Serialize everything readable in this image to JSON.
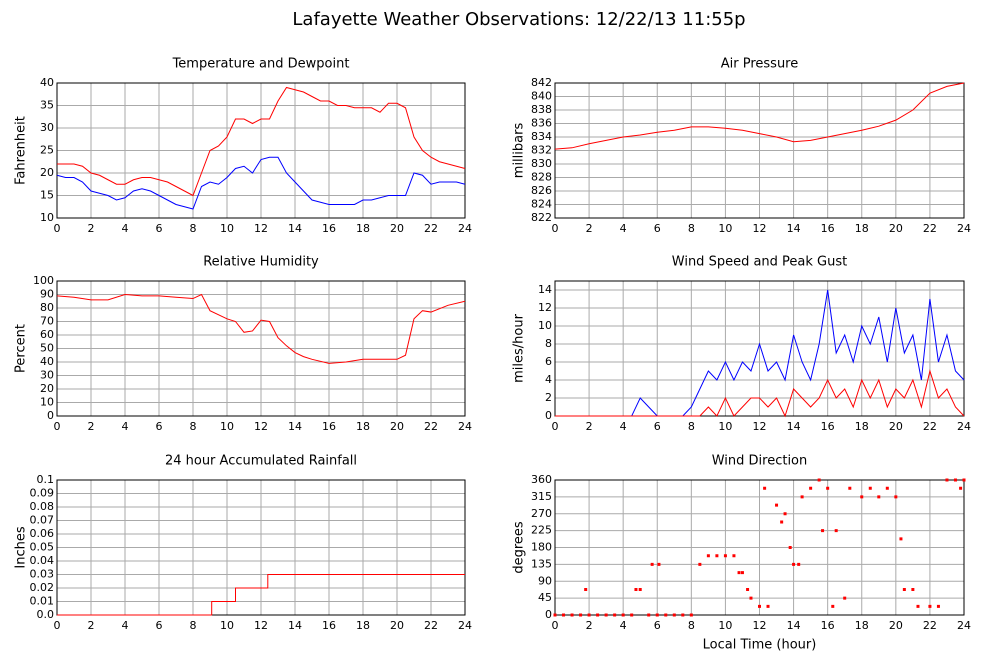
{
  "title": "Lafayette Weather Observations: 12/22/13 11:55p",
  "chart_data": [
    {
      "type": "line",
      "title": "Temperature and Dewpoint",
      "ylabel": "Fahrenheit",
      "x": [
        0,
        0.5,
        1,
        1.5,
        2,
        2.5,
        3,
        3.5,
        4,
        4.5,
        5,
        5.5,
        6,
        6.5,
        7,
        7.5,
        8,
        8.5,
        9,
        9.5,
        10,
        10.5,
        11,
        11.5,
        12,
        12.5,
        13,
        13.5,
        14,
        14.5,
        15,
        15.5,
        16,
        16.5,
        17,
        17.5,
        18,
        18.5,
        19,
        19.5,
        20,
        20.5,
        21,
        21.5,
        22,
        22.5,
        23,
        23.5,
        24
      ],
      "series": [
        {
          "color": "#ff0000",
          "values": [
            22,
            22,
            22,
            21.5,
            20,
            19.5,
            18.5,
            17.5,
            17.5,
            18.5,
            19,
            19,
            18.5,
            18,
            17,
            16,
            15,
            20,
            25,
            26,
            28,
            32,
            32,
            31,
            32,
            32,
            36,
            39,
            38.5,
            38,
            37,
            36,
            36,
            35,
            35,
            34.5,
            34.5,
            34.5,
            33.5,
            35.5,
            35.5,
            34.5,
            28,
            25,
            23.5,
            22.5,
            22,
            21.5,
            21
          ]
        },
        {
          "color": "#0000ff",
          "values": [
            19.5,
            19,
            19,
            18,
            16,
            15.5,
            15,
            14,
            14.5,
            16,
            16.5,
            16,
            15,
            14,
            13,
            12.5,
            12,
            17,
            18,
            17.5,
            19,
            21,
            21.5,
            20,
            23,
            23.5,
            23.5,
            20,
            18,
            16,
            14,
            13.5,
            13,
            13,
            13,
            13,
            14,
            14,
            14.5,
            15,
            15,
            15,
            20,
            19.5,
            17.5,
            18,
            18,
            18,
            17.5
          ]
        }
      ],
      "xlim": [
        0,
        24
      ],
      "xticks": [
        0,
        2,
        4,
        6,
        8,
        10,
        12,
        14,
        16,
        18,
        20,
        22,
        24
      ],
      "ylim": [
        10,
        40
      ],
      "yticks": [
        10,
        15,
        20,
        25,
        30,
        35,
        40
      ],
      "grid": true
    },
    {
      "type": "line",
      "title": "Air Pressure",
      "ylabel": "millibars",
      "x": [
        0,
        1,
        2,
        3,
        4,
        5,
        6,
        7,
        8,
        9,
        10,
        11,
        12,
        13,
        14,
        15,
        16,
        17,
        18,
        19,
        20,
        21,
        22,
        23,
        24
      ],
      "series": [
        {
          "color": "#ff0000",
          "values": [
            832.2,
            832.4,
            833,
            833.5,
            834,
            834.3,
            834.7,
            835,
            835.5,
            835.5,
            835.3,
            835,
            834.5,
            834,
            833.3,
            833.5,
            834,
            834.5,
            835,
            835.6,
            836.5,
            838,
            840.5,
            841.5,
            842
          ]
        }
      ],
      "xlim": [
        0,
        24
      ],
      "xticks": [
        0,
        2,
        4,
        6,
        8,
        10,
        12,
        14,
        16,
        18,
        20,
        22,
        24
      ],
      "ylim": [
        822,
        842
      ],
      "yticks": [
        822,
        824,
        826,
        828,
        830,
        832,
        834,
        836,
        838,
        840,
        842
      ],
      "grid": true
    },
    {
      "type": "line",
      "title": "Relative Humidity",
      "ylabel": "Percent",
      "x": [
        0,
        1,
        2,
        3,
        4,
        5,
        6,
        7,
        8,
        8.5,
        9,
        10,
        10.5,
        11,
        11.5,
        12,
        12.5,
        13,
        13.5,
        14,
        14.5,
        15,
        16,
        17,
        18,
        19,
        20,
        20.5,
        21,
        21.5,
        22,
        23,
        24
      ],
      "series": [
        {
          "color": "#ff0000",
          "values": [
            89,
            88,
            86,
            86,
            90,
            89,
            89,
            88,
            87,
            90,
            78,
            72,
            70,
            62,
            63,
            71,
            70,
            58,
            52,
            47,
            44,
            42,
            39,
            40,
            42,
            42,
            42,
            45,
            72,
            78,
            77,
            82,
            85
          ]
        }
      ],
      "xlim": [
        0,
        24
      ],
      "xticks": [
        0,
        2,
        4,
        6,
        8,
        10,
        12,
        14,
        16,
        18,
        20,
        22,
        24
      ],
      "ylim": [
        0,
        100
      ],
      "yticks": [
        0,
        10,
        20,
        30,
        40,
        50,
        60,
        70,
        80,
        90,
        100
      ],
      "grid": true
    },
    {
      "type": "line",
      "title": "Wind Speed and Peak Gust",
      "ylabel": "miles/hour",
      "x": [
        0,
        0.5,
        1,
        1.5,
        2,
        2.5,
        3,
        3.5,
        4,
        4.5,
        5,
        5.5,
        6,
        6.5,
        7,
        7.5,
        8,
        8.5,
        9,
        9.5,
        10,
        10.5,
        11,
        11.5,
        12,
        12.5,
        13,
        13.5,
        14,
        14.5,
        15,
        15.5,
        16,
        16.5,
        17,
        17.5,
        18,
        18.5,
        19,
        19.5,
        20,
        20.5,
        21,
        21.5,
        22,
        22.5,
        23,
        23.5,
        24
      ],
      "series": [
        {
          "color": "#0000ff",
          "values": [
            0,
            0,
            0,
            0,
            0,
            0,
            0,
            0,
            0,
            0,
            2,
            1,
            0,
            0,
            0,
            0,
            1,
            3,
            5,
            4,
            6,
            4,
            6,
            5,
            8,
            5,
            6,
            4,
            9,
            6,
            4,
            8,
            14,
            7,
            9,
            6,
            10,
            8,
            11,
            6,
            12,
            7,
            9,
            4,
            13,
            6,
            9,
            5,
            4
          ]
        },
        {
          "color": "#ff0000",
          "values": [
            0,
            0,
            0,
            0,
            0,
            0,
            0,
            0,
            0,
            0,
            0,
            0,
            0,
            0,
            0,
            0,
            0,
            0,
            1,
            0,
            2,
            0,
            1,
            2,
            2,
            1,
            2,
            0,
            3,
            2,
            1,
            2,
            4,
            2,
            3,
            1,
            4,
            2,
            4,
            1,
            3,
            2,
            4,
            1,
            5,
            2,
            3,
            1,
            0
          ]
        }
      ],
      "xlim": [
        0,
        24
      ],
      "xticks": [
        0,
        2,
        4,
        6,
        8,
        10,
        12,
        14,
        16,
        18,
        20,
        22,
        24
      ],
      "ylim": [
        0,
        15
      ],
      "yticks": [
        0,
        2,
        4,
        6,
        8,
        10,
        12,
        14
      ],
      "grid": true
    },
    {
      "type": "line",
      "title": "24 hour Accumulated Rainfall",
      "ylabel": "Inches",
      "x": [
        0,
        9.1,
        9.1,
        10.5,
        10.5,
        12.4,
        12.4,
        24
      ],
      "series": [
        {
          "color": "#ff0000",
          "values": [
            0,
            0,
            0.01,
            0.01,
            0.02,
            0.02,
            0.03,
            0.03
          ]
        }
      ],
      "xlim": [
        0,
        24
      ],
      "xticks": [
        0,
        2,
        4,
        6,
        8,
        10,
        12,
        14,
        16,
        18,
        20,
        22,
        24
      ],
      "ylim": [
        0,
        0.1
      ],
      "yticks": [
        {
          "value": 0,
          "label": "0.0"
        },
        0.01,
        0.02,
        0.03,
        0.04,
        0.05,
        0.06,
        0.07,
        0.08,
        0.09,
        0.1
      ],
      "grid": true
    },
    {
      "type": "scatter",
      "title": "Wind Direction",
      "ylabel": "degrees",
      "xlabel": "Local Time (hour)",
      "x": [
        0,
        0.5,
        1,
        1.5,
        1.8,
        2,
        2.5,
        3,
        3.5,
        4,
        4.5,
        4.75,
        5,
        5.5,
        5.7,
        6,
        6.1,
        6.5,
        7,
        7.5,
        8,
        8.5,
        9,
        9.5,
        10,
        10.5,
        10.8,
        11,
        11.3,
        11.5,
        12,
        12.3,
        12.5,
        13,
        13.3,
        13.5,
        13.8,
        14,
        14.3,
        14.5,
        15,
        15.5,
        15.7,
        16,
        16.3,
        16.5,
        17,
        17.3,
        18,
        18.5,
        19,
        19.5,
        20,
        20.3,
        20.5,
        21,
        21.3,
        22,
        22.5,
        23,
        23.5,
        23.8,
        24
      ],
      "series": [
        {
          "color": "#ff0000",
          "values": [
            0,
            0,
            0,
            0,
            68,
            0,
            0,
            0,
            0,
            0,
            0,
            68,
            68,
            0,
            135,
            0,
            135,
            0,
            0,
            0,
            0,
            135,
            158,
            158,
            158,
            158,
            113,
            113,
            68,
            45,
            23,
            338,
            23,
            293,
            248,
            270,
            180,
            135,
            135,
            315,
            338,
            360,
            225,
            338,
            23,
            225,
            45,
            338,
            315,
            338,
            315,
            338,
            315,
            203,
            68,
            68,
            23,
            23,
            23,
            360,
            360,
            338,
            360
          ]
        }
      ],
      "xlim": [
        0,
        24
      ],
      "xticks": [
        0,
        2,
        4,
        6,
        8,
        10,
        12,
        14,
        16,
        18,
        20,
        22,
        24
      ],
      "ylim": [
        0,
        360
      ],
      "yticks": [
        0,
        45,
        90,
        135,
        180,
        225,
        270,
        315,
        360
      ],
      "grid": true
    }
  ]
}
